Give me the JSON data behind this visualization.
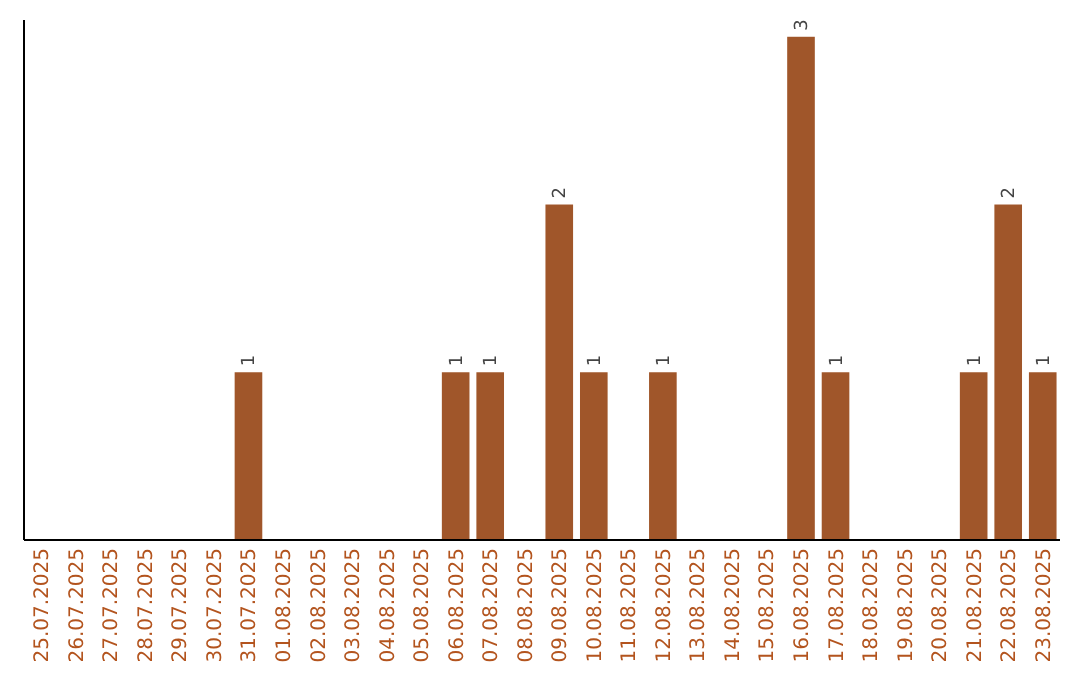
{
  "chart_data": {
    "type": "bar",
    "categories": [
      "25.07.2025",
      "26.07.2025",
      "27.07.2025",
      "28.07.2025",
      "29.07.2025",
      "30.07.2025",
      "31.07.2025",
      "01.08.2025",
      "02.08.2025",
      "03.08.2025",
      "04.08.2025",
      "05.08.2025",
      "06.08.2025",
      "07.08.2025",
      "08.08.2025",
      "09.08.2025",
      "10.08.2025",
      "11.08.2025",
      "12.08.2025",
      "13.08.2025",
      "14.08.2025",
      "15.08.2025",
      "16.08.2025",
      "17.08.2025",
      "18.08.2025",
      "19.08.2025",
      "20.08.2025",
      "21.08.2025",
      "22.08.2025",
      "23.08.2025"
    ],
    "values": [
      0,
      0,
      0,
      0,
      0,
      0,
      1,
      0,
      0,
      0,
      0,
      0,
      1,
      1,
      0,
      2,
      1,
      0,
      1,
      0,
      0,
      0,
      3,
      1,
      0,
      0,
      0,
      1,
      2,
      1
    ],
    "value_labels": [
      null,
      null,
      null,
      null,
      null,
      null,
      "1",
      null,
      null,
      null,
      null,
      null,
      "1",
      "1",
      null,
      "2",
      "1",
      null,
      "1",
      null,
      null,
      null,
      "3",
      "1",
      null,
      null,
      null,
      "1",
      "2",
      "1"
    ],
    "color": "#a0562a",
    "ylim": [
      0,
      3.1
    ],
    "tick_labels": "x"
  }
}
